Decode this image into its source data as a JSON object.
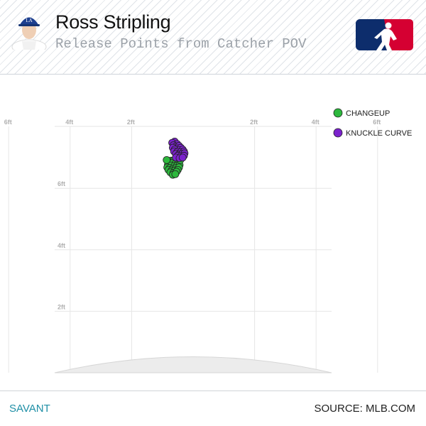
{
  "header": {
    "player_name": "Ross Stripling",
    "subtitle": "Release Points from Catcher POV"
  },
  "footer": {
    "brand": "SAVANT",
    "source": "SOURCE: MLB.COM"
  },
  "colors": {
    "changeup": "#2db83d",
    "knuckle_curve": "#7b22cc",
    "mlb_blue": "#0d2d6c",
    "mlb_red": "#d50032",
    "grid": "#e6e6e6",
    "mound": "#ececec"
  },
  "icons": {
    "avatar": "player-headshot-icon",
    "logo": "mlb-logo-icon"
  },
  "chart_data": {
    "type": "scatter",
    "title": "Release Points from Catcher POV",
    "x_ticks": [
      {
        "value": -8,
        "label": "8ft"
      },
      {
        "value": -6,
        "label": "6ft"
      },
      {
        "value": -4,
        "label": "4ft"
      },
      {
        "value": -2,
        "label": "2ft"
      },
      {
        "value": 2,
        "label": "2ft"
      },
      {
        "value": 4,
        "label": "4ft"
      },
      {
        "value": 6,
        "label": "6ft"
      }
    ],
    "y_ticks": [
      {
        "value": 6,
        "label": "6ft"
      },
      {
        "value": 4,
        "label": "4ft"
      },
      {
        "value": 2,
        "label": "2ft"
      }
    ],
    "xlim": [
      -9,
      9
    ],
    "ylim": [
      0,
      8
    ],
    "legend_position": "top-right",
    "grid": true,
    "series": [
      {
        "name": "CHANGEUP",
        "color": "#2db83d",
        "points": [
          [
            -0.72,
            6.9
          ],
          [
            -0.62,
            6.92
          ],
          [
            -0.55,
            6.88
          ],
          [
            -0.78,
            6.84
          ],
          [
            -0.68,
            6.82
          ],
          [
            -0.58,
            6.8
          ],
          [
            -0.48,
            6.84
          ],
          [
            -0.82,
            6.76
          ],
          [
            -0.72,
            6.74
          ],
          [
            -0.62,
            6.72
          ],
          [
            -0.52,
            6.74
          ],
          [
            -0.44,
            6.76
          ],
          [
            -0.84,
            6.68
          ],
          [
            -0.76,
            6.66
          ],
          [
            -0.66,
            6.64
          ],
          [
            -0.56,
            6.66
          ],
          [
            -0.46,
            6.68
          ],
          [
            -0.8,
            6.6
          ],
          [
            -0.7,
            6.58
          ],
          [
            -0.6,
            6.58
          ],
          [
            -0.5,
            6.6
          ],
          [
            -0.74,
            6.52
          ],
          [
            -0.64,
            6.5
          ],
          [
            -0.54,
            6.54
          ],
          [
            -0.66,
            6.44
          ],
          [
            -0.58,
            6.46
          ],
          [
            -0.86,
            6.92
          ],
          [
            -0.42,
            6.92
          ]
        ]
      },
      {
        "name": "KNUCKLE CURVE",
        "color": "#7b22cc",
        "points": [
          [
            -0.6,
            7.52
          ],
          [
            -0.68,
            7.48
          ],
          [
            -0.52,
            7.44
          ],
          [
            -0.64,
            7.4
          ],
          [
            -0.56,
            7.36
          ],
          [
            -0.46,
            7.38
          ],
          [
            -0.66,
            7.32
          ],
          [
            -0.5,
            7.3
          ],
          [
            -0.4,
            7.32
          ],
          [
            -0.6,
            7.26
          ],
          [
            -0.44,
            7.24
          ],
          [
            -0.34,
            7.26
          ],
          [
            -0.62,
            7.2
          ],
          [
            -0.52,
            7.18
          ],
          [
            -0.4,
            7.18
          ],
          [
            -0.3,
            7.2
          ],
          [
            -0.56,
            7.12
          ],
          [
            -0.46,
            7.1
          ],
          [
            -0.36,
            7.12
          ],
          [
            -0.28,
            7.14
          ],
          [
            -0.5,
            7.06
          ],
          [
            -0.4,
            7.04
          ],
          [
            -0.3,
            7.06
          ],
          [
            -0.56,
            7.0
          ],
          [
            -0.44,
            6.98
          ],
          [
            -0.34,
            7.0
          ]
        ]
      }
    ]
  }
}
